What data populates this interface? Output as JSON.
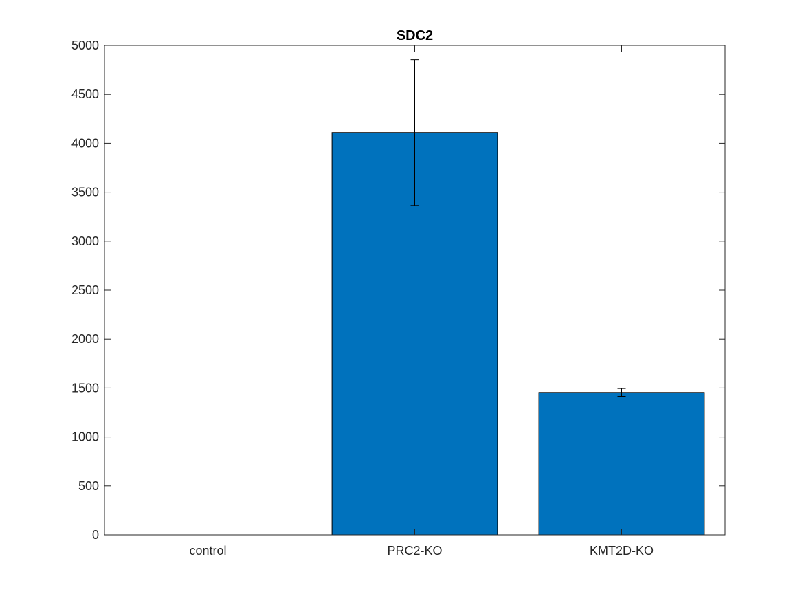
{
  "chart_data": {
    "type": "bar",
    "title": "SDC2",
    "xlabel": "",
    "ylabel": "",
    "categories": [
      "control",
      "PRC2-KO",
      "KMT2D-KO"
    ],
    "values": [
      0,
      4110,
      1455
    ],
    "errors": [
      0,
      745,
      40
    ],
    "ylim": [
      0,
      5000
    ],
    "yticks": [
      0,
      500,
      1000,
      1500,
      2000,
      2500,
      3000,
      3500,
      4000,
      4500,
      5000
    ],
    "grid": false,
    "bar_color": "#0072BD",
    "legend": null
  }
}
